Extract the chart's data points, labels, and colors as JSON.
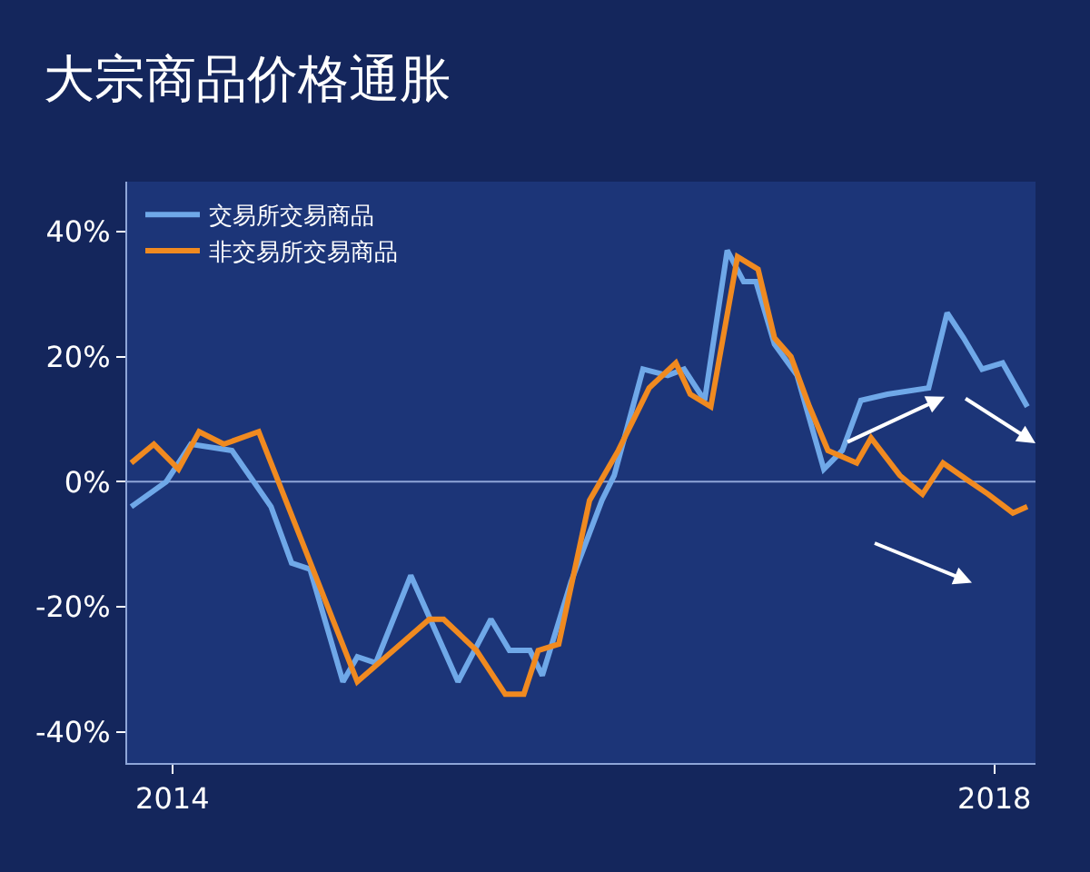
{
  "chart_data": {
    "type": "line",
    "title": "大宗商品价格通胀",
    "xlim": [
      2013.78,
      2018.2
    ],
    "xticks": [
      2014,
      2018
    ],
    "ylim": [
      -45,
      48
    ],
    "yticks": [
      {
        "value": 40,
        "label": "40%"
      },
      {
        "value": 20,
        "label": "20%"
      },
      {
        "value": 0,
        "label": "0%"
      },
      {
        "value": -20,
        "label": "-20%"
      },
      {
        "value": -40,
        "label": "-40%"
      }
    ],
    "grid": false,
    "legend": "top left",
    "line_style": "solid",
    "marker": "none",
    "ref_lines": [
      {
        "axis": "y",
        "value": 0,
        "color": "#8fa6d8"
      }
    ],
    "series": [
      {
        "name": "交易所交易商品",
        "color": "#6fa8e8",
        "x": [
          2013.8,
          2013.97,
          2014.09,
          2014.29,
          2014.48,
          2014.58,
          2014.67,
          2014.83,
          2014.9,
          2014.99,
          2015.16,
          2015.39,
          2015.55,
          2015.64,
          2015.74,
          2015.8,
          2015.94,
          2016.09,
          2016.15,
          2016.29,
          2016.41,
          2016.49,
          2016.59,
          2016.7,
          2016.78,
          2016.84,
          2016.93,
          2017.04,
          2017.17,
          2017.26,
          2017.35,
          2017.48,
          2017.68,
          2017.77,
          2017.85,
          2017.94,
          2018.04,
          2018.16
        ],
        "values": [
          -4,
          0,
          6,
          5,
          -4,
          -13,
          -14,
          -32,
          -28,
          -29,
          -15,
          -32,
          -22,
          -27,
          -27,
          -31,
          -16,
          -3,
          1,
          18,
          17,
          18,
          13,
          37,
          32,
          32,
          22,
          17,
          2,
          5,
          13,
          14,
          15,
          27,
          23,
          18,
          19,
          12
        ]
      },
      {
        "name": "非交易所交易商品",
        "color": "#f08a20",
        "x": [
          2013.8,
          2013.91,
          2014.03,
          2014.13,
          2014.25,
          2014.42,
          2014.9,
          2015.25,
          2015.32,
          2015.48,
          2015.62,
          2015.71,
          2015.78,
          2015.88,
          2016.03,
          2016.17,
          2016.32,
          2016.45,
          2016.52,
          2016.62,
          2016.75,
          2016.85,
          2016.93,
          2017.01,
          2017.1,
          2017.19,
          2017.33,
          2017.4,
          2017.54,
          2017.65,
          2017.75,
          2017.88,
          2017.97,
          2018.09,
          2018.16
        ],
        "values": [
          3,
          6,
          2,
          8,
          6,
          8,
          -32,
          -22,
          -22,
          -27,
          -34,
          -34,
          -27,
          -26,
          -3,
          5,
          15,
          19,
          14,
          12,
          36,
          34,
          23,
          20,
          12,
          5,
          3,
          7,
          1,
          -2,
          3,
          0,
          -2,
          -5,
          -4
        ]
      }
    ]
  }
}
